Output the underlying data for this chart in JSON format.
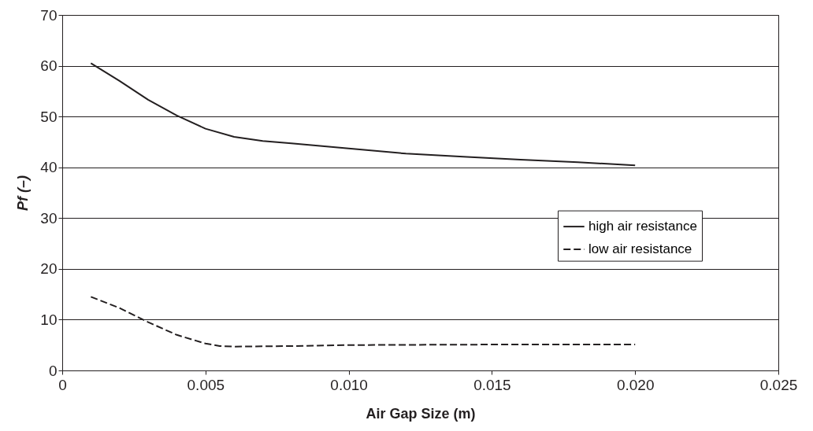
{
  "chart_data": {
    "type": "line",
    "xlabel": "Air Gap Size (m)",
    "ylabel": "Pf (–)",
    "xlim": [
      0,
      0.025
    ],
    "xticks": [
      0,
      0.005,
      {
        "value": 0.01,
        "label": "0.010"
      },
      0.015,
      {
        "value": 0.02,
        "label": "0.020"
      },
      0.025
    ],
    "ylim": [
      0,
      70
    ],
    "yticks": [
      0,
      10,
      20,
      30,
      40,
      50,
      60,
      70
    ],
    "grid": "y",
    "legend": "right",
    "marker": "none",
    "series": [
      {
        "name": "high air resistance",
        "color": "#231f20",
        "line_style": "solid",
        "x": [
          0.001,
          0.002,
          0.003,
          0.004,
          0.005,
          0.006,
          0.007,
          0.008,
          0.009,
          0.01,
          0.012,
          0.014,
          0.016,
          0.018,
          0.02
        ],
        "values": [
          60.5,
          57,
          53.3,
          50.2,
          47.6,
          46,
          45.2,
          44.7,
          44.2,
          43.7,
          42.7,
          42.1,
          41.5,
          41,
          40.4
        ]
      },
      {
        "name": "low air resistance",
        "color": "#231f20",
        "line_style": "dashed",
        "x": [
          0.001,
          0.002,
          0.003,
          0.004,
          0.005,
          0.0055,
          0.006,
          0.008,
          0.01,
          0.015,
          0.02
        ],
        "values": [
          14.5,
          12.3,
          9.5,
          7,
          5.3,
          4.8,
          4.7,
          4.8,
          5,
          5.1,
          5.1
        ]
      }
    ]
  }
}
